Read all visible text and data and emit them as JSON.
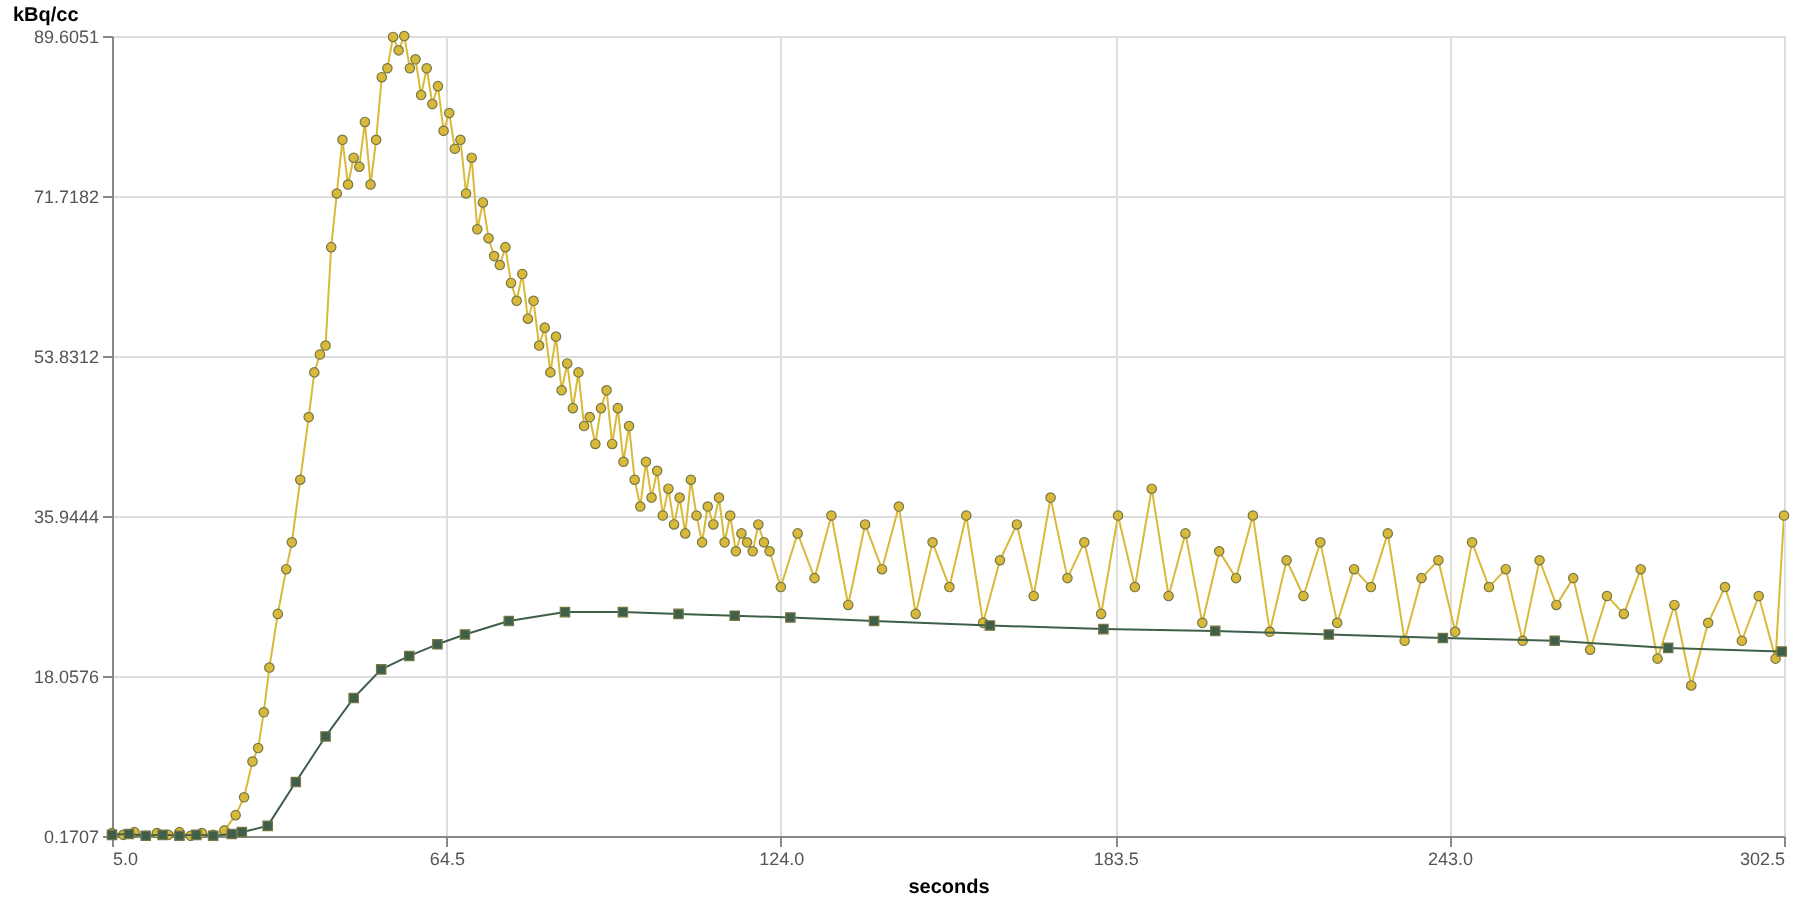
{
  "chart_data": {
    "type": "line",
    "xlabel": "seconds",
    "ylabel": "kBq/cc",
    "xlim": [
      5.0,
      302.5
    ],
    "xticks": [
      {
        "value": 5.0,
        "label": "5.0"
      },
      {
        "value": 64.5,
        "label": "64.5"
      },
      {
        "value": 124.0,
        "label": "124.0"
      },
      {
        "value": 183.5,
        "label": "183.5"
      },
      {
        "value": 243.0,
        "label": "243.0"
      },
      {
        "value": 302.5,
        "label": "302.5"
      }
    ],
    "ylim": [
      0.1707,
      89.6051
    ],
    "yticks": [
      0.1707,
      {
        "value": 18.0576,
        "label": "18.0576"
      },
      {
        "value": 35.9444,
        "label": "35.9444"
      },
      {
        "value": 53.8312,
        "label": "53.8312"
      },
      71.7182,
      89.6051
    ],
    "grid": true,
    "series": [
      {
        "color": "#d9b93a",
        "marker": "circle",
        "x": [
          5,
          7,
          9,
          11,
          13,
          15,
          17,
          19,
          21,
          23,
          25,
          27,
          28.5,
          30,
          31,
          32,
          33,
          34.5,
          36,
          37,
          38.5,
          40,
          41,
          42,
          43,
          44,
          45,
          46,
          47,
          48,
          49,
          50,
          51,
          52,
          53,
          54,
          55,
          56,
          57,
          58,
          59,
          60,
          61,
          62,
          63,
          64,
          65,
          66,
          67,
          68,
          69,
          70,
          71,
          72,
          73,
          74,
          75,
          76,
          77,
          78,
          79,
          80,
          81,
          82,
          83,
          84,
          85,
          86,
          87,
          88,
          89,
          90,
          91,
          92,
          93,
          94,
          95,
          96,
          97,
          98,
          99,
          100,
          101,
          102,
          103,
          104,
          105,
          106,
          107,
          108,
          109,
          110,
          111,
          112,
          113,
          114,
          115,
          116,
          117,
          118,
          119,
          120,
          121,
          122,
          124,
          127,
          130,
          133,
          136,
          139,
          142,
          145,
          148,
          151,
          154,
          157,
          160,
          163,
          166,
          169,
          172,
          175,
          178,
          181,
          184,
          187,
          190,
          193,
          196,
          199,
          202,
          205,
          208,
          211,
          214,
          217,
          220,
          223,
          226,
          229,
          232,
          235,
          238,
          241,
          244,
          247,
          250,
          253,
          256,
          259,
          262,
          265,
          268,
          271,
          274,
          277,
          280,
          283,
          286,
          289,
          292,
          295,
          298,
          301,
          302.5
        ],
        "values": [
          0.5,
          0.3,
          0.6,
          0.2,
          0.5,
          0.3,
          0.6,
          0.2,
          0.5,
          0.3,
          0.8,
          2.5,
          4.5,
          8.5,
          10,
          14,
          19,
          25,
          30,
          33,
          40,
          47,
          52,
          54,
          55,
          66,
          72,
          78,
          73,
          76,
          75,
          80,
          73,
          78,
          85,
          86,
          89.5,
          88,
          89.6,
          86,
          87,
          83,
          86,
          82,
          84,
          79,
          81,
          77,
          78,
          72,
          76,
          68,
          71,
          67,
          65,
          64,
          66,
          62,
          60,
          63,
          58,
          60,
          55,
          57,
          52,
          56,
          50,
          53,
          48,
          52,
          46,
          47,
          44,
          48,
          50,
          44,
          48,
          42,
          46,
          40,
          37,
          42,
          38,
          41,
          36,
          39,
          35,
          38,
          34,
          40,
          36,
          33,
          37,
          35,
          38,
          33,
          36,
          32,
          34,
          33,
          32,
          35,
          33,
          32,
          28,
          34,
          29,
          36,
          26,
          35,
          30,
          37,
          25,
          33,
          28,
          36,
          24,
          31,
          35,
          27,
          38,
          29,
          33,
          25,
          36,
          28,
          39,
          27,
          34,
          24,
          32,
          29,
          36,
          23,
          31,
          27,
          33,
          24,
          30,
          28,
          34,
          22,
          29,
          31,
          23,
          33,
          28,
          30,
          22,
          31,
          26,
          29,
          21,
          27,
          25,
          30,
          20,
          26,
          17,
          24,
          28,
          22,
          27,
          20,
          36
        ]
      },
      {
        "color": "#3f5f4a",
        "marker": "square",
        "x": [
          5,
          8,
          11,
          14,
          17,
          20,
          23,
          26.3,
          28.1,
          32.7,
          37.7,
          43,
          48,
          52.9,
          57.9,
          62.9,
          67.8,
          75.6,
          85.6,
          95.9,
          105.8,
          115.8,
          125.7,
          140.6,
          161.2,
          181.4,
          201.3,
          221.5,
          241.8,
          261.7,
          281.9,
          302.1
        ],
        "values": [
          0.3,
          0.4,
          0.2,
          0.3,
          0.2,
          0.3,
          0.2,
          0.4,
          0.6,
          1.3,
          6.2,
          11.3,
          15.6,
          18.8,
          20.3,
          21.6,
          22.7,
          24.2,
          25.2,
          25.2,
          25.0,
          24.8,
          24.6,
          24.2,
          23.7,
          23.3,
          23.1,
          22.7,
          22.3,
          22.0,
          21.2,
          20.8
        ]
      }
    ]
  }
}
